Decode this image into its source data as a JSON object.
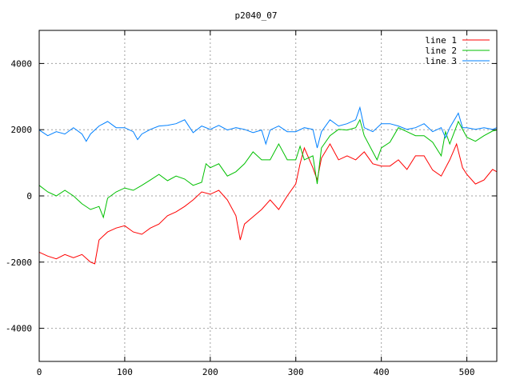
{
  "chart_data": {
    "type": "line",
    "title": "p2040_07",
    "xlabel": "",
    "ylabel": "",
    "xlim": [
      0,
      535
    ],
    "ylim": [
      -5000,
      5000
    ],
    "xticks": [
      0,
      100,
      200,
      300,
      400,
      500
    ],
    "yticks": [
      -4000,
      -2000,
      0,
      2000,
      4000
    ],
    "grid": true,
    "legend_position": "top-right",
    "series": [
      {
        "name": "line 1",
        "color": "#ff0000",
        "x": [
          0,
          10,
          20,
          30,
          40,
          50,
          60,
          65,
          70,
          80,
          90,
          100,
          110,
          120,
          130,
          140,
          150,
          160,
          170,
          180,
          190,
          200,
          210,
          220,
          230,
          235,
          240,
          250,
          260,
          270,
          280,
          290,
          300,
          305,
          310,
          320,
          325,
          330,
          340,
          350,
          360,
          370,
          380,
          390,
          400,
          410,
          420,
          430,
          440,
          450,
          460,
          470,
          480,
          488,
          495,
          500,
          510,
          520,
          530,
          535
        ],
        "y": [
          -1700,
          -1820,
          -1900,
          -1770,
          -1870,
          -1770,
          -2000,
          -2050,
          -1330,
          -1090,
          -970,
          -900,
          -1090,
          -1160,
          -970,
          -850,
          -600,
          -480,
          -320,
          -120,
          120,
          50,
          170,
          -120,
          -600,
          -1330,
          -850,
          -630,
          -410,
          -120,
          -410,
          0,
          360,
          970,
          1450,
          850,
          480,
          1140,
          1570,
          1090,
          1210,
          1090,
          1330,
          970,
          900,
          900,
          1090,
          800,
          1210,
          1210,
          780,
          600,
          1090,
          1570,
          850,
          650,
          360,
          480,
          800,
          730
        ]
      },
      {
        "name": "line 2",
        "color": "#00c000",
        "x": [
          0,
          10,
          20,
          30,
          40,
          50,
          60,
          70,
          75,
          80,
          90,
          100,
          110,
          120,
          130,
          140,
          150,
          160,
          170,
          180,
          190,
          195,
          200,
          210,
          220,
          230,
          240,
          250,
          260,
          270,
          280,
          290,
          300,
          305,
          310,
          320,
          325,
          330,
          340,
          350,
          360,
          370,
          375,
          380,
          390,
          395,
          400,
          410,
          420,
          430,
          440,
          450,
          460,
          470,
          475,
          480,
          490,
          500,
          510,
          520,
          530,
          535
        ],
        "y": [
          320,
          120,
          0,
          170,
          0,
          -240,
          -410,
          -320,
          -650,
          -70,
          120,
          240,
          170,
          320,
          480,
          650,
          460,
          600,
          510,
          320,
          410,
          970,
          850,
          970,
          600,
          730,
          970,
          1330,
          1090,
          1090,
          1570,
          1090,
          1090,
          1500,
          1090,
          1210,
          360,
          1450,
          1820,
          2010,
          1990,
          2060,
          2300,
          1820,
          1330,
          1090,
          1450,
          1620,
          2060,
          1940,
          1820,
          1820,
          1620,
          1210,
          1940,
          1570,
          2250,
          1770,
          1650,
          1820,
          1960,
          1990
        ]
      },
      {
        "name": "line 3",
        "color": "#0080ff",
        "x": [
          0,
          10,
          20,
          30,
          40,
          50,
          55,
          60,
          70,
          80,
          90,
          100,
          110,
          115,
          120,
          130,
          140,
          150,
          160,
          170,
          180,
          190,
          200,
          210,
          220,
          230,
          240,
          250,
          260,
          265,
          270,
          280,
          290,
          300,
          310,
          320,
          325,
          330,
          340,
          350,
          360,
          370,
          375,
          380,
          390,
          400,
          410,
          420,
          430,
          440,
          450,
          460,
          470,
          475,
          480,
          490,
          495,
          500,
          510,
          520,
          530,
          535
        ],
        "y": [
          1990,
          1820,
          1940,
          1870,
          2060,
          1870,
          1650,
          1870,
          2110,
          2250,
          2060,
          2060,
          1940,
          1700,
          1870,
          2010,
          2110,
          2130,
          2180,
          2300,
          1910,
          2110,
          2010,
          2130,
          1990,
          2060,
          2010,
          1910,
          1990,
          1570,
          1990,
          2110,
          1940,
          1940,
          2060,
          2010,
          1450,
          1940,
          2300,
          2110,
          2180,
          2300,
          2670,
          2060,
          1940,
          2180,
          2180,
          2110,
          2010,
          2060,
          2180,
          1940,
          2060,
          1750,
          2060,
          2500,
          2060,
          2060,
          2010,
          2060,
          2010,
          2060
        ]
      }
    ]
  }
}
